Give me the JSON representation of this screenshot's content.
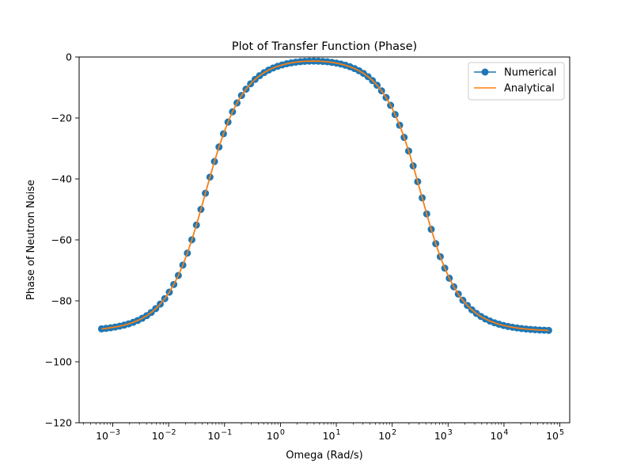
{
  "chart_data": {
    "type": "line",
    "title": "Plot of Transfer Function (Phase)",
    "xlabel": "Omega (Rad/s)",
    "ylabel": "Phase of Neutron Noise",
    "x_scale": "log",
    "xlim": [
      0.00025,
      150000
    ],
    "ylim": [
      -120,
      0
    ],
    "x_ticks": [
      {
        "value": 0.001,
        "base": "10",
        "exp": "−3"
      },
      {
        "value": 0.01,
        "base": "10",
        "exp": "−2"
      },
      {
        "value": 0.1,
        "base": "10",
        "exp": "−1"
      },
      {
        "value": 1,
        "base": "10",
        "exp": "0"
      },
      {
        "value": 10,
        "base": "10",
        "exp": "1"
      },
      {
        "value": 100,
        "base": "10",
        "exp": "2"
      },
      {
        "value": 1000,
        "base": "10",
        "exp": "3"
      },
      {
        "value": 10000,
        "base": "10",
        "exp": "4"
      },
      {
        "value": 100000,
        "base": "10",
        "exp": "5"
      }
    ],
    "y_ticks": [
      {
        "value": 0,
        "label": "0"
      },
      {
        "value": -20,
        "label": "−20"
      },
      {
        "value": -40,
        "label": "−40"
      },
      {
        "value": -60,
        "label": "−60"
      },
      {
        "value": -80,
        "label": "−80"
      },
      {
        "value": -100,
        "label": "−100"
      },
      {
        "value": -120,
        "label": "−120"
      }
    ],
    "grid": false,
    "legend_position": "top-right",
    "model": {
      "x_min": 0.00063,
      "x_max": 63000,
      "points": 100,
      "pole_low": 0.045,
      "pole_high": 330
    },
    "series": [
      {
        "name": "Numerical",
        "color": "#1f77b4",
        "style": "line-markers"
      },
      {
        "name": "Analytical",
        "color": "#ff7f0e",
        "style": "line"
      }
    ]
  }
}
